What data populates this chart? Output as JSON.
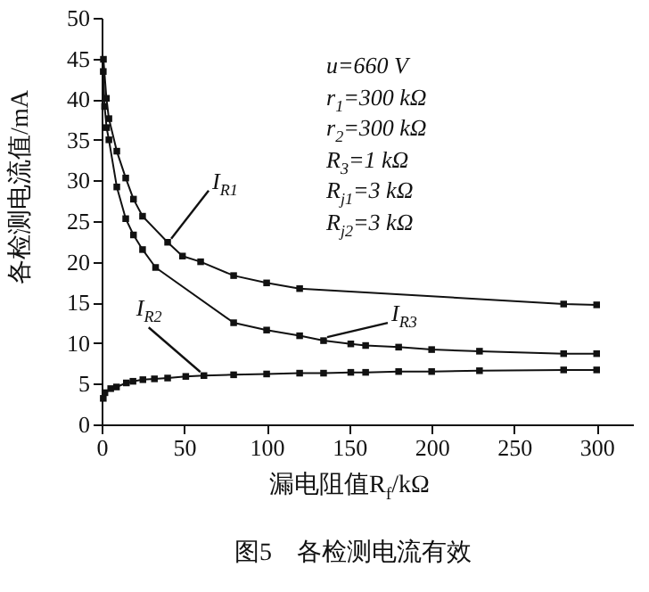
{
  "chart_data": {
    "type": "line",
    "title": "图5　各检测电流有效",
    "xlabel": "漏电阻值R$_{f}$/kΩ",
    "ylabel": "各检测电流值/mA",
    "xlim": [
      0,
      322
    ],
    "ylim": [
      0,
      50
    ],
    "xticks": [
      0,
      50,
      100,
      150,
      200,
      250,
      300
    ],
    "yticks": [
      0,
      5,
      10,
      15,
      20,
      25,
      30,
      35,
      40,
      45,
      50
    ],
    "grid": false,
    "marker": "square",
    "line_style": "solid",
    "annotations": [
      "u=660 V",
      "r$_{1}$=300 kΩ",
      "r$_{2}$=300 kΩ",
      "R$_{3}$=1 kΩ",
      "R$_{j1}$=3 kΩ",
      "R$_{j2}$=3 kΩ"
    ],
    "series": [
      {
        "name": "I$_{R1}$",
        "color": "#111111",
        "x": [
          1.1,
          2.9,
          4.4,
          9.2,
          14.6,
          19.3,
          24.8,
          40,
          49,
          60,
          80,
          100,
          120,
          280,
          300
        ],
        "values": [
          44.9,
          40.1,
          37.6,
          33.6,
          30.3,
          27.7,
          25.6,
          22.4,
          20.7,
          20,
          18.3,
          17.4,
          16.7,
          14.8,
          14.7
        ]
      },
      {
        "name": "I$_{R3}$",
        "color": "#111111",
        "x": [
          1,
          1.8,
          3,
          4.4,
          9.2,
          14.6,
          19.3,
          24.8,
          32.7,
          80,
          100,
          120,
          134.5,
          151,
          160,
          180,
          200,
          229,
          280,
          300
        ],
        "values": [
          43.4,
          39.1,
          36.5,
          35,
          29.2,
          25.3,
          23.3,
          21.5,
          19.3,
          12.5,
          11.6,
          10.9,
          10.3,
          9.9,
          9.7,
          9.5,
          9.2,
          9,
          8.7,
          8.7
        ]
      },
      {
        "name": "I$_{R2}$",
        "color": "#111111",
        "x": [
          1,
          2,
          5.5,
          9,
          15,
          19,
          25,
          32,
          40,
          51,
          62,
          80,
          100,
          120,
          134.5,
          151,
          160,
          180,
          200,
          229,
          280,
          300
        ],
        "values": [
          3.2,
          3.9,
          4.4,
          4.6,
          5.1,
          5.3,
          5.5,
          5.6,
          5.7,
          5.9,
          6,
          6.1,
          6.2,
          6.3,
          6.3,
          6.4,
          6.4,
          6.5,
          6.5,
          6.6,
          6.7,
          6.7
        ]
      }
    ]
  }
}
